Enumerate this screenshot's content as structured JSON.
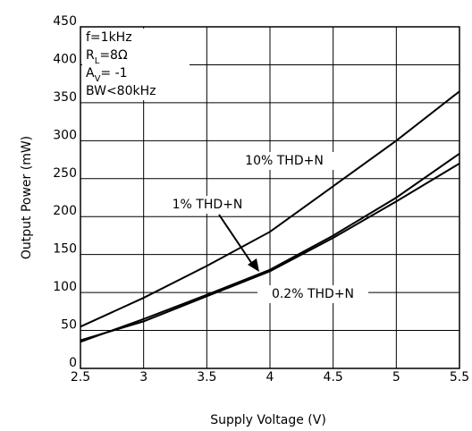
{
  "chart_data": {
    "type": "line",
    "x_label": "Supply Voltage (V)",
    "y_label": "Output Power (mW)",
    "x": [
      2.5,
      3,
      3.5,
      4,
      4.5,
      5,
      5.5
    ],
    "series": [
      {
        "name": "10% THD+N",
        "color": "#000000",
        "values": [
          55,
          93,
          135,
          180,
          240,
          300,
          365
        ]
      },
      {
        "name": "1% THD+N",
        "color": "#000000",
        "values": [
          35,
          65,
          97,
          130,
          175,
          225,
          283
        ]
      },
      {
        "name": "0.2% THD+N",
        "color": "#000000",
        "values": [
          37,
          62,
          95,
          128,
          172,
          220,
          270
        ]
      }
    ],
    "conditions": [
      [
        "f=1kHz"
      ],
      [
        "R",
        "L",
        "=8Ω"
      ],
      [
        "A",
        "V",
        "= -1"
      ],
      [
        "BW<80kHz"
      ]
    ],
    "xlim": [
      2.5,
      5.5
    ],
    "xticks": [
      2.5,
      3,
      3.5,
      4,
      4.5,
      5,
      5.5
    ],
    "ylim": [
      0,
      450
    ],
    "yticks": [
      0,
      50,
      100,
      150,
      200,
      250,
      300,
      350,
      400,
      450
    ],
    "grid": true
  }
}
